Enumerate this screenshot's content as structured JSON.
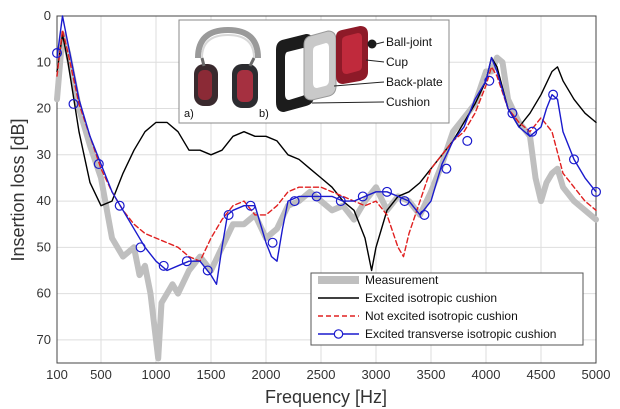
{
  "chart_data": {
    "type": "line",
    "xlabel": "Frequency [Hz]",
    "ylabel": "Insertion loss [dB]",
    "xlim": [
      100,
      5000
    ],
    "ylim": [
      0,
      75
    ],
    "y_inverted": true,
    "grid": true,
    "legend_position": "bottom-right",
    "x_ticks": [
      100,
      500,
      1000,
      1500,
      2000,
      2500,
      3000,
      3500,
      4000,
      4500,
      5000
    ],
    "y_ticks": [
      0,
      10,
      20,
      30,
      40,
      50,
      60,
      70
    ],
    "series": [
      {
        "name": "Measurement",
        "color": "#bfbfbf",
        "style": "thick-band",
        "points": [
          [
            100,
            18
          ],
          [
            150,
            4
          ],
          [
            200,
            8
          ],
          [
            300,
            20
          ],
          [
            400,
            28
          ],
          [
            500,
            35
          ],
          [
            600,
            48
          ],
          [
            700,
            52
          ],
          [
            800,
            50
          ],
          [
            850,
            56
          ],
          [
            900,
            54
          ],
          [
            950,
            60
          ],
          [
            1000,
            70
          ],
          [
            1020,
            74
          ],
          [
            1050,
            62
          ],
          [
            1100,
            60
          ],
          [
            1150,
            58
          ],
          [
            1200,
            60
          ],
          [
            1300,
            55
          ],
          [
            1400,
            52
          ],
          [
            1500,
            55
          ],
          [
            1600,
            50
          ],
          [
            1700,
            45
          ],
          [
            1800,
            45
          ],
          [
            1900,
            43
          ],
          [
            2000,
            48
          ],
          [
            2100,
            46
          ],
          [
            2200,
            41
          ],
          [
            2300,
            40
          ],
          [
            2400,
            38
          ],
          [
            2500,
            40
          ],
          [
            2600,
            42
          ],
          [
            2700,
            41
          ],
          [
            2800,
            44
          ],
          [
            2900,
            40
          ],
          [
            3000,
            37
          ],
          [
            3100,
            42
          ],
          [
            3200,
            39
          ],
          [
            3300,
            40
          ],
          [
            3400,
            43
          ],
          [
            3500,
            38
          ],
          [
            3600,
            32
          ],
          [
            3700,
            25
          ],
          [
            3800,
            22
          ],
          [
            3900,
            19
          ],
          [
            4000,
            12
          ],
          [
            4050,
            12
          ],
          [
            4100,
            9
          ],
          [
            4150,
            10
          ],
          [
            4200,
            18
          ],
          [
            4300,
            23
          ],
          [
            4400,
            26
          ],
          [
            4450,
            35
          ],
          [
            4500,
            40
          ],
          [
            4550,
            36
          ],
          [
            4600,
            34
          ],
          [
            4650,
            33
          ],
          [
            4700,
            37
          ],
          [
            4800,
            40
          ],
          [
            4900,
            42
          ],
          [
            5000,
            44
          ]
        ]
      },
      {
        "name": "Excited isotropic cushion",
        "color": "#000000",
        "style": "solid",
        "points": [
          [
            100,
            12
          ],
          [
            150,
            4
          ],
          [
            200,
            10
          ],
          [
            300,
            25
          ],
          [
            400,
            36
          ],
          [
            500,
            41
          ],
          [
            600,
            40
          ],
          [
            700,
            34
          ],
          [
            800,
            29
          ],
          [
            900,
            25
          ],
          [
            1000,
            23
          ],
          [
            1100,
            23
          ],
          [
            1200,
            25
          ],
          [
            1300,
            29
          ],
          [
            1400,
            29
          ],
          [
            1500,
            30
          ],
          [
            1600,
            29
          ],
          [
            1700,
            26
          ],
          [
            1800,
            25
          ],
          [
            1900,
            26
          ],
          [
            2000,
            26
          ],
          [
            2100,
            27
          ],
          [
            2200,
            30
          ],
          [
            2300,
            31
          ],
          [
            2400,
            33
          ],
          [
            2500,
            35
          ],
          [
            2600,
            37
          ],
          [
            2700,
            40
          ],
          [
            2800,
            42
          ],
          [
            2900,
            48
          ],
          [
            2960,
            55
          ],
          [
            3000,
            50
          ],
          [
            3100,
            42
          ],
          [
            3200,
            39
          ],
          [
            3300,
            38
          ],
          [
            3400,
            36
          ],
          [
            3500,
            33
          ],
          [
            3600,
            30
          ],
          [
            3700,
            27
          ],
          [
            3800,
            23
          ],
          [
            3900,
            19
          ],
          [
            4000,
            14
          ],
          [
            4050,
            9
          ],
          [
            4100,
            11
          ],
          [
            4200,
            20
          ],
          [
            4300,
            24
          ],
          [
            4400,
            21
          ],
          [
            4500,
            17
          ],
          [
            4600,
            12
          ],
          [
            4650,
            11
          ],
          [
            4700,
            14
          ],
          [
            4800,
            18
          ],
          [
            4900,
            21
          ],
          [
            5000,
            23
          ]
        ]
      },
      {
        "name": "Not excited isotropic cushion",
        "color": "#e02020",
        "style": "dashed",
        "points": [
          [
            100,
            13
          ],
          [
            150,
            3
          ],
          [
            200,
            8
          ],
          [
            300,
            19
          ],
          [
            400,
            26
          ],
          [
            500,
            33
          ],
          [
            600,
            38
          ],
          [
            700,
            42
          ],
          [
            800,
            45
          ],
          [
            900,
            47
          ],
          [
            1000,
            48
          ],
          [
            1100,
            49
          ],
          [
            1200,
            50
          ],
          [
            1300,
            52
          ],
          [
            1400,
            53
          ],
          [
            1500,
            48
          ],
          [
            1600,
            44
          ],
          [
            1700,
            41
          ],
          [
            1800,
            40
          ],
          [
            1900,
            43
          ],
          [
            2000,
            43
          ],
          [
            2100,
            41
          ],
          [
            2200,
            38
          ],
          [
            2300,
            37
          ],
          [
            2400,
            37
          ],
          [
            2500,
            37
          ],
          [
            2600,
            38
          ],
          [
            2700,
            39
          ],
          [
            2800,
            40
          ],
          [
            2900,
            41
          ],
          [
            3000,
            40
          ],
          [
            3100,
            43
          ],
          [
            3200,
            50
          ],
          [
            3250,
            52
          ],
          [
            3300,
            47
          ],
          [
            3400,
            40
          ],
          [
            3500,
            33
          ],
          [
            3600,
            30
          ],
          [
            3700,
            27
          ],
          [
            3800,
            25
          ],
          [
            3900,
            21
          ],
          [
            4000,
            15
          ],
          [
            4050,
            11
          ],
          [
            4100,
            13
          ],
          [
            4200,
            20
          ],
          [
            4300,
            23
          ],
          [
            4400,
            25
          ],
          [
            4500,
            22
          ],
          [
            4600,
            25
          ],
          [
            4700,
            34
          ],
          [
            4800,
            37
          ],
          [
            4900,
            40
          ],
          [
            5000,
            42
          ]
        ]
      },
      {
        "name": "Excited transverse isotropic cushion",
        "color": "#1a1acd",
        "style": "solid-circles",
        "points": [
          [
            100,
            9
          ],
          [
            150,
            0
          ],
          [
            200,
            6
          ],
          [
            300,
            18
          ],
          [
            400,
            26
          ],
          [
            500,
            32
          ],
          [
            600,
            38
          ],
          [
            700,
            42
          ],
          [
            800,
            46
          ],
          [
            900,
            50
          ],
          [
            1000,
            53
          ],
          [
            1100,
            55
          ],
          [
            1200,
            54
          ],
          [
            1300,
            53
          ],
          [
            1400,
            53
          ],
          [
            1500,
            56
          ],
          [
            1550,
            58
          ],
          [
            1600,
            50
          ],
          [
            1650,
            43
          ],
          [
            1700,
            42
          ],
          [
            1800,
            41
          ],
          [
            1900,
            41
          ],
          [
            2000,
            49
          ],
          [
            2050,
            52
          ],
          [
            2100,
            53
          ],
          [
            2150,
            46
          ],
          [
            2200,
            40
          ],
          [
            2300,
            39
          ],
          [
            2400,
            39
          ],
          [
            2500,
            39
          ],
          [
            2600,
            39
          ],
          [
            2700,
            40
          ],
          [
            2800,
            40
          ],
          [
            2900,
            39
          ],
          [
            3000,
            38
          ],
          [
            3100,
            38
          ],
          [
            3200,
            39
          ],
          [
            3300,
            40
          ],
          [
            3400,
            43
          ],
          [
            3500,
            40
          ],
          [
            3600,
            32
          ],
          [
            3700,
            27
          ],
          [
            3800,
            24
          ],
          [
            3900,
            18
          ],
          [
            4000,
            14
          ],
          [
            4050,
            9
          ],
          [
            4100,
            12
          ],
          [
            4200,
            20
          ],
          [
            4300,
            24
          ],
          [
            4400,
            26
          ],
          [
            4500,
            24
          ],
          [
            4550,
            20
          ],
          [
            4600,
            17
          ],
          [
            4650,
            18
          ],
          [
            4700,
            25
          ],
          [
            4800,
            31
          ],
          [
            4900,
            35
          ],
          [
            5000,
            38
          ]
        ],
        "markers": [
          [
            100,
            8
          ],
          [
            250,
            19
          ],
          [
            480,
            32
          ],
          [
            670,
            41
          ],
          [
            860,
            50
          ],
          [
            1070,
            54
          ],
          [
            1280,
            53
          ],
          [
            1470,
            55
          ],
          [
            1660,
            43
          ],
          [
            1860,
            41
          ],
          [
            2060,
            49
          ],
          [
            2260,
            40
          ],
          [
            2460,
            39
          ],
          [
            2680,
            40
          ],
          [
            2880,
            39
          ],
          [
            3100,
            38
          ],
          [
            3260,
            40
          ],
          [
            3440,
            43
          ],
          [
            3640,
            33
          ],
          [
            3830,
            27
          ],
          [
            4030,
            14
          ],
          [
            4240,
            21
          ],
          [
            4420,
            25
          ],
          [
            4610,
            17
          ],
          [
            4800,
            31
          ],
          [
            5000,
            38
          ]
        ]
      }
    ]
  },
  "inset": {
    "labels": {
      "ball_joint": "Ball-joint",
      "cup": "Cup",
      "back_plate": "Back-plate",
      "cushion": "Cushion",
      "panel_a": "a)",
      "panel_b": "b)"
    }
  }
}
